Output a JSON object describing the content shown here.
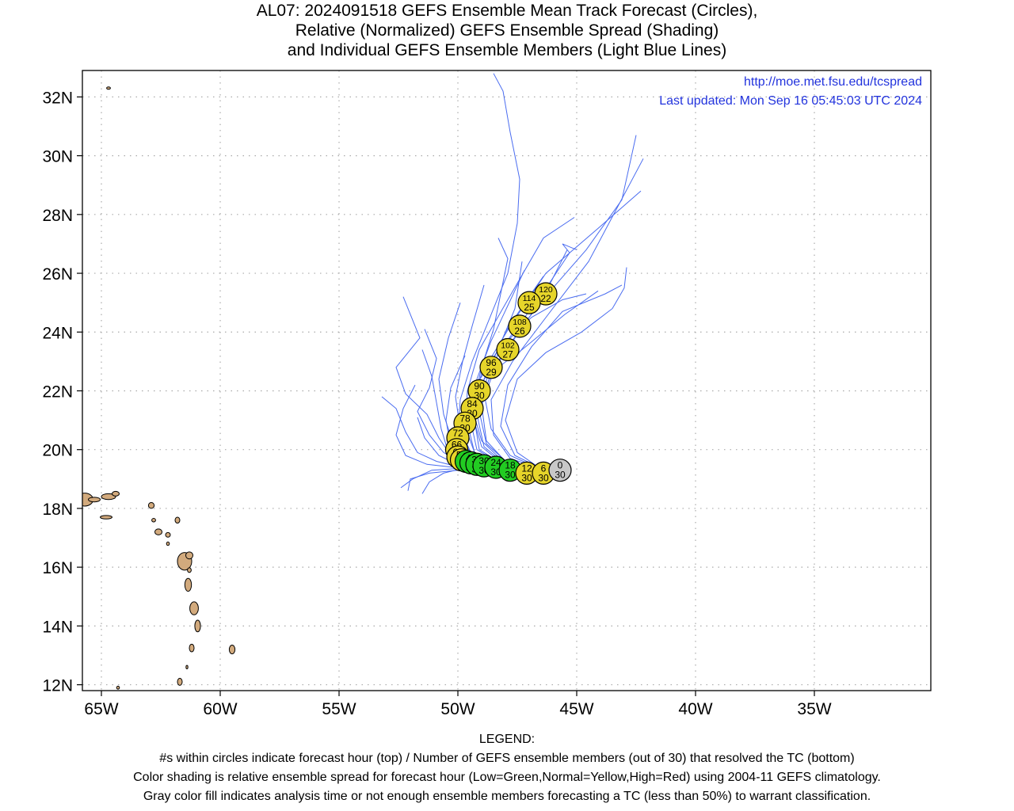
{
  "title_lines": [
    "AL07: 2024091518 GEFS Ensemble Mean Track Forecast (Circles),",
    "Relative (Normalized) GEFS Ensemble Spread (Shading)",
    "and Individual GEFS Ensemble Members (Light Blue Lines)"
  ],
  "source_url": "http://moe.met.fsu.edu/tcspread",
  "last_updated": "Last updated: Mon Sep 16 05:45:03 UTC 2024",
  "legend_lines": [
    "LEGEND:",
    "#s within circles indicate forecast hour (top) / Number of GEFS ensemble members (out of 30) that resolved the TC (bottom)",
    "Color shading is relative ensemble spread for forecast hour (Low=Green,Normal=Yellow,High=Red) using 2004-11 GEFS climatology.",
    "Gray color fill indicates analysis time or not enough ensemble members forecasting a TC (less than 50%) to warrant classification."
  ],
  "colors": {
    "ensemble_lines": "#4a6cf0",
    "low_spread": "#22cc22",
    "normal_spread": "#e6d52a",
    "analysis_gray": "#c8c8c8",
    "land": "#d2aa7d",
    "link_text": "#2233dd"
  },
  "axes": {
    "lon_ticks": [
      "65W",
      "60W",
      "55W",
      "50W",
      "45W",
      "40W",
      "35W"
    ],
    "lat_ticks": [
      "32N",
      "30N",
      "28N",
      "26N",
      "24N",
      "22N",
      "20N",
      "18N",
      "16N",
      "14N",
      "12N"
    ],
    "lon_range": [
      -65.8,
      -30.1
    ],
    "lat_range": [
      11.8,
      32.9
    ],
    "grid": true
  },
  "chart_data": {
    "type": "scatter",
    "mean_track": [
      {
        "hour": "0",
        "members": "30",
        "lon": -45.7,
        "lat": 19.3,
        "spread": "gray"
      },
      {
        "hour": "6",
        "members": "30",
        "lon": -46.4,
        "lat": 19.2,
        "spread": "normal"
      },
      {
        "hour": "12",
        "members": "30",
        "lon": -47.1,
        "lat": 19.2,
        "spread": "normal"
      },
      {
        "hour": "18",
        "members": "30",
        "lon": -47.8,
        "lat": 19.3,
        "spread": "low"
      },
      {
        "hour": "24",
        "members": "30",
        "lon": -48.4,
        "lat": 19.4,
        "spread": "low"
      },
      {
        "hour": "30",
        "members": "30",
        "lon": -48.9,
        "lat": 19.45,
        "spread": "low"
      },
      {
        "hour": "36",
        "members": "30",
        "lon": -49.2,
        "lat": 19.5,
        "spread": "low"
      },
      {
        "hour": "42",
        "members": "30",
        "lon": -49.45,
        "lat": 19.55,
        "spread": "low"
      },
      {
        "hour": "48",
        "members": "30",
        "lon": -49.65,
        "lat": 19.6,
        "spread": "low"
      },
      {
        "hour": "54",
        "members": "30",
        "lon": -49.85,
        "lat": 19.65,
        "spread": "normal"
      },
      {
        "hour": "60",
        "members": "30",
        "lon": -50.0,
        "lat": 19.75,
        "spread": "normal"
      },
      {
        "hour": "66",
        "members": "30",
        "lon": -50.05,
        "lat": 20.0,
        "spread": "normal"
      },
      {
        "hour": "72",
        "members": "30",
        "lon": -50.0,
        "lat": 20.4,
        "spread": "normal"
      },
      {
        "hour": "78",
        "members": "30",
        "lon": -49.7,
        "lat": 20.9,
        "spread": "normal"
      },
      {
        "hour": "84",
        "members": "30",
        "lon": -49.4,
        "lat": 21.4,
        "spread": "normal"
      },
      {
        "hour": "90",
        "members": "30",
        "lon": -49.1,
        "lat": 22.0,
        "spread": "normal"
      },
      {
        "hour": "96",
        "members": "29",
        "lon": -48.6,
        "lat": 22.8,
        "spread": "normal"
      },
      {
        "hour": "102",
        "members": "27",
        "lon": -47.9,
        "lat": 23.4,
        "spread": "normal"
      },
      {
        "hour": "108",
        "members": "26",
        "lon": -47.4,
        "lat": 24.2,
        "spread": "normal"
      },
      {
        "hour": "114",
        "members": "25",
        "lon": -47.0,
        "lat": 25.0,
        "spread": "normal"
      },
      {
        "hour": "120",
        "members": "22",
        "lon": -46.3,
        "lat": 25.3,
        "spread": "normal"
      }
    ],
    "members": [
      [
        [
          -45.7,
          19.3
        ],
        [
          -47,
          19.3
        ],
        [
          -48.5,
          19.4
        ],
        [
          -49.6,
          19.5
        ],
        [
          -50.3,
          19.8
        ],
        [
          -50.8,
          20.4
        ],
        [
          -51.3,
          21.2
        ],
        [
          -52.2,
          21.9
        ],
        [
          -52.6,
          22.8
        ],
        [
          -51.6,
          23.8
        ],
        [
          -52.3,
          25.2
        ]
      ],
      [
        [
          -45.7,
          19.3
        ],
        [
          -47,
          19.25
        ],
        [
          -48.6,
          19.4
        ],
        [
          -49.8,
          19.55
        ],
        [
          -50.6,
          19.9
        ],
        [
          -51.2,
          20.5
        ],
        [
          -51.7,
          21.3
        ],
        [
          -51.2,
          22.1
        ],
        [
          -50.9,
          23.1
        ],
        [
          -51.4,
          24.1
        ]
      ],
      [
        [
          -45.7,
          19.3
        ],
        [
          -47.2,
          19.2
        ],
        [
          -48.8,
          19.3
        ],
        [
          -50.2,
          19.4
        ],
        [
          -51.3,
          19.5
        ],
        [
          -52.2,
          19.8
        ],
        [
          -52.6,
          20.5
        ],
        [
          -52.3,
          21.4
        ],
        [
          -51.8,
          22.2
        ]
      ],
      [
        [
          -45.7,
          19.3
        ],
        [
          -47.1,
          19.2
        ],
        [
          -48.6,
          19.25
        ],
        [
          -50,
          19.3
        ],
        [
          -51.2,
          19.2
        ],
        [
          -52,
          19.0
        ],
        [
          -52.1,
          18.6
        ]
      ],
      [
        [
          -45.7,
          19.3
        ],
        [
          -47,
          19.2
        ],
        [
          -48.5,
          19.3
        ],
        [
          -49.6,
          19.4
        ],
        [
          -50.6,
          19.2
        ],
        [
          -51.2,
          18.9
        ],
        [
          -51.5,
          18.5
        ]
      ],
      [
        [
          -45.7,
          19.3
        ],
        [
          -46.8,
          19.2
        ],
        [
          -48.2,
          19.3
        ],
        [
          -49.5,
          19.6
        ],
        [
          -50.2,
          20.2
        ],
        [
          -50.6,
          21.2
        ],
        [
          -50.8,
          22.4
        ],
        [
          -50.4,
          23.8
        ],
        [
          -49.9,
          25.0
        ]
      ],
      [
        [
          -45.7,
          19.3
        ],
        [
          -46.9,
          19.3
        ],
        [
          -48.3,
          19.4
        ],
        [
          -49.4,
          19.8
        ],
        [
          -49.9,
          20.7
        ],
        [
          -50.1,
          21.8
        ],
        [
          -49.8,
          23.0
        ],
        [
          -49.4,
          24.2
        ],
        [
          -48.9,
          25.6
        ]
      ],
      [
        [
          -45.7,
          19.3
        ],
        [
          -46.8,
          19.3
        ],
        [
          -48.1,
          19.5
        ],
        [
          -49.1,
          20.0
        ],
        [
          -49.3,
          21.0
        ],
        [
          -48.9,
          22.4
        ],
        [
          -48.2,
          23.6
        ],
        [
          -47.6,
          24.8
        ],
        [
          -47.3,
          26.4
        ]
      ],
      [
        [
          -45.7,
          19.3
        ],
        [
          -46.8,
          19.3
        ],
        [
          -48,
          19.5
        ],
        [
          -48.9,
          20.1
        ],
        [
          -49.2,
          21.2
        ],
        [
          -48.6,
          22.6
        ],
        [
          -47.6,
          23.8
        ],
        [
          -46.4,
          25.2
        ],
        [
          -45.4,
          26.8
        ]
      ],
      [
        [
          -45.7,
          19.3
        ],
        [
          -46.8,
          19.3
        ],
        [
          -48,
          19.6
        ],
        [
          -48.8,
          20.3
        ],
        [
          -49.0,
          21.5
        ],
        [
          -48.4,
          22.9
        ],
        [
          -47.2,
          24.3
        ],
        [
          -46.0,
          25.5
        ],
        [
          -44.6,
          26.8
        ],
        [
          -43.1,
          28.5
        ],
        [
          -42.5,
          30.7
        ]
      ],
      [
        [
          -45.7,
          19.3
        ],
        [
          -46.7,
          19.4
        ],
        [
          -47.8,
          19.7
        ],
        [
          -48.5,
          20.5
        ],
        [
          -48.6,
          21.7
        ],
        [
          -47.7,
          23.0
        ],
        [
          -46.2,
          24.6
        ],
        [
          -44.5,
          26.4
        ],
        [
          -42.2,
          29.9
        ]
      ],
      [
        [
          -45.7,
          19.3
        ],
        [
          -46.6,
          19.4
        ],
        [
          -47.6,
          19.8
        ],
        [
          -48.2,
          20.8
        ],
        [
          -47.9,
          22.2
        ],
        [
          -46.9,
          23.5
        ],
        [
          -45.6,
          24.7
        ],
        [
          -43.8,
          25.3
        ],
        [
          -43.1,
          25.6
        ]
      ],
      [
        [
          -45.7,
          19.3
        ],
        [
          -46.6,
          19.4
        ],
        [
          -47.5,
          19.9
        ],
        [
          -48.0,
          21.0
        ],
        [
          -47.5,
          22.4
        ],
        [
          -46.3,
          23.3
        ],
        [
          -44.8,
          24.0
        ],
        [
          -43.5,
          24.8
        ],
        [
          -43.0,
          25.5
        ],
        [
          -42.9,
          26.2
        ]
      ],
      [
        [
          -45.7,
          19.3
        ],
        [
          -46.7,
          19.4
        ],
        [
          -47.8,
          19.8
        ],
        [
          -48.6,
          20.7
        ],
        [
          -48.9,
          21.9
        ],
        [
          -48.3,
          23.3
        ],
        [
          -47.1,
          24.6
        ],
        [
          -46.2,
          25.6
        ],
        [
          -45.3,
          26.7
        ],
        [
          -45.6,
          27.0
        ],
        [
          -45.0,
          26.8
        ]
      ],
      [
        [
          -45.7,
          19.3
        ],
        [
          -46.8,
          19.35
        ],
        [
          -48.1,
          19.6
        ],
        [
          -49.0,
          20.3
        ],
        [
          -49.4,
          21.4
        ],
        [
          -49.0,
          22.8
        ],
        [
          -48.5,
          24.1
        ],
        [
          -48.2,
          25.3
        ],
        [
          -47.9,
          26.5
        ],
        [
          -48.3,
          27.2
        ]
      ],
      [
        [
          -45.7,
          19.3
        ],
        [
          -46.9,
          19.3
        ],
        [
          -48.3,
          19.45
        ],
        [
          -49.3,
          19.9
        ],
        [
          -49.7,
          20.8
        ],
        [
          -49.6,
          22.0
        ],
        [
          -49.1,
          23.4
        ],
        [
          -47.9,
          25.1
        ],
        [
          -46.4,
          27.2
        ],
        [
          -45.1,
          27.9
        ]
      ],
      [
        [
          -45.7,
          19.3
        ],
        [
          -46.9,
          19.3
        ],
        [
          -48.2,
          19.5
        ],
        [
          -49.2,
          20.0
        ],
        [
          -49.5,
          21.1
        ],
        [
          -49.0,
          22.6
        ],
        [
          -47.8,
          24.2
        ],
        [
          -46.3,
          26.0
        ],
        [
          -44.0,
          27.6
        ],
        [
          -42.3,
          28.8
        ]
      ],
      [
        [
          -45.7,
          19.3
        ],
        [
          -47,
          19.3
        ],
        [
          -48.4,
          19.4
        ],
        [
          -49.5,
          19.7
        ],
        [
          -50.0,
          20.4
        ],
        [
          -49.7,
          21.4
        ],
        [
          -48.8,
          22.5
        ],
        [
          -47.3,
          23.4
        ],
        [
          -45.5,
          24.6
        ],
        [
          -44.1,
          25.4
        ]
      ],
      [
        [
          -45.7,
          19.3
        ],
        [
          -47,
          19.3
        ],
        [
          -48.4,
          19.4
        ],
        [
          -49.6,
          19.6
        ],
        [
          -50.3,
          20.1
        ],
        [
          -50.5,
          21.0
        ],
        [
          -50.3,
          22.1
        ],
        [
          -49.7,
          23.2
        ]
      ],
      [
        [
          -45.7,
          19.3
        ],
        [
          -47.1,
          19.25
        ],
        [
          -48.6,
          19.3
        ],
        [
          -49.9,
          19.4
        ],
        [
          -50.9,
          19.6
        ],
        [
          -51.7,
          19.9
        ],
        [
          -52.2,
          20.6
        ],
        [
          -52.6,
          21.4
        ],
        [
          -53.2,
          21.8
        ]
      ],
      [
        [
          -45.7,
          19.3
        ],
        [
          -47.1,
          19.2
        ],
        [
          -48.7,
          19.3
        ],
        [
          -50.1,
          19.35
        ],
        [
          -51.1,
          19.3
        ],
        [
          -51.9,
          19.0
        ],
        [
          -52.4,
          18.7
        ]
      ],
      [
        [
          -45.7,
          19.3
        ],
        [
          -46.8,
          19.3
        ],
        [
          -48.2,
          19.4
        ],
        [
          -49.4,
          19.8
        ],
        [
          -50.0,
          20.6
        ],
        [
          -49.9,
          21.7
        ],
        [
          -49.4,
          23.0
        ],
        [
          -48.7,
          24.4
        ],
        [
          -47.9,
          26.0
        ],
        [
          -47.5,
          27.7
        ],
        [
          -47.4,
          29.2
        ],
        [
          -47.8,
          30.8
        ],
        [
          -48.1,
          32.2
        ],
        [
          -48.5,
          32.8
        ]
      ],
      [
        [
          -45.7,
          19.3
        ],
        [
          -46.7,
          19.35
        ],
        [
          -47.9,
          19.55
        ],
        [
          -48.8,
          20.2
        ],
        [
          -49.1,
          21.3
        ],
        [
          -48.7,
          22.7
        ],
        [
          -48.0,
          24.0
        ],
        [
          -47.1,
          25.1
        ],
        [
          -46.4,
          25.9
        ]
      ],
      [
        [
          -45.7,
          19.3
        ],
        [
          -46.8,
          19.3
        ],
        [
          -48.1,
          19.5
        ],
        [
          -49.0,
          20.1
        ],
        [
          -49.4,
          21.2
        ],
        [
          -49.2,
          22.4
        ],
        [
          -48.6,
          23.7
        ],
        [
          -47.9,
          24.9
        ],
        [
          -47.2,
          26.1
        ]
      ],
      [
        [
          -45.7,
          19.3
        ],
        [
          -47,
          19.3
        ],
        [
          -48.5,
          19.35
        ],
        [
          -49.7,
          19.5
        ],
        [
          -50.4,
          19.9
        ],
        [
          -50.7,
          20.7
        ],
        [
          -50.9,
          21.6
        ],
        [
          -51.1,
          22.5
        ],
        [
          -51.5,
          23.4
        ]
      ],
      [
        [
          -45.7,
          19.3
        ],
        [
          -47,
          19.25
        ],
        [
          -48.6,
          19.3
        ],
        [
          -49.9,
          19.45
        ],
        [
          -50.8,
          19.8
        ],
        [
          -51.4,
          20.4
        ],
        [
          -51.7,
          21.1
        ]
      ],
      [
        [
          -45.7,
          19.3
        ],
        [
          -46.9,
          19.3
        ],
        [
          -48.3,
          19.45
        ],
        [
          -49.3,
          19.9
        ],
        [
          -49.6,
          20.9
        ],
        [
          -49.3,
          22.1
        ],
        [
          -48.3,
          23.4
        ],
        [
          -46.9,
          24.5
        ],
        [
          -45.6,
          25.1
        ],
        [
          -44.6,
          25.3
        ]
      ]
    ]
  }
}
